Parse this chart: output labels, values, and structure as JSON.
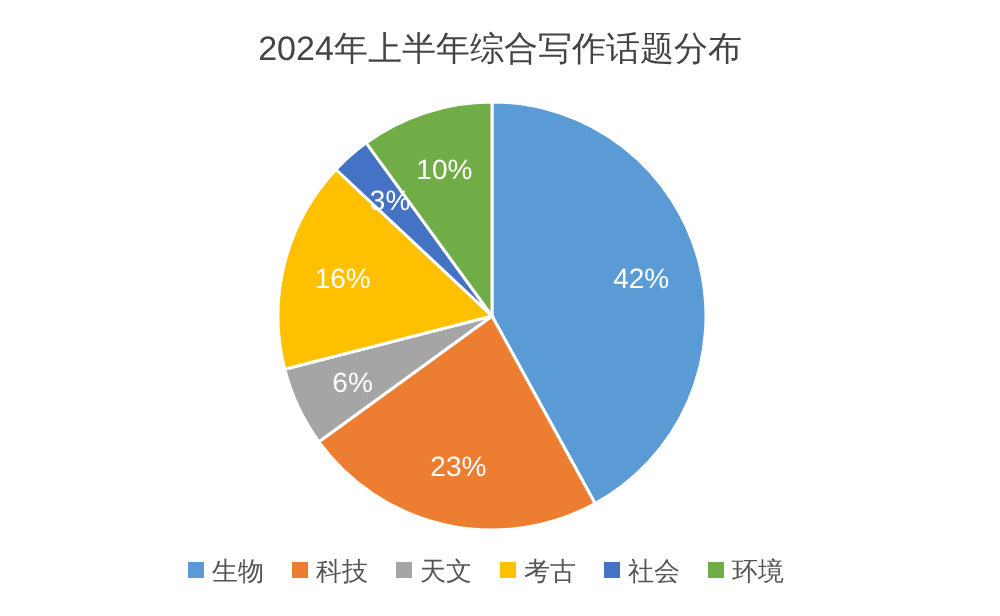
{
  "chart_data": {
    "type": "pie",
    "title": "2024年上半年综合写作话题分布",
    "categories": [
      "生物",
      "科技",
      "天文",
      "考古",
      "社会",
      "环境"
    ],
    "values": [
      42,
      23,
      6,
      16,
      3,
      10
    ],
    "colors": [
      "#5b9bd5",
      "#ed7d31",
      "#a5a5a5",
      "#ffc000",
      "#4472c4",
      "#70ad47"
    ],
    "value_labels": [
      "42%",
      "23%",
      "6%",
      "16%",
      "3%",
      "10%"
    ],
    "legend": "bottom"
  }
}
